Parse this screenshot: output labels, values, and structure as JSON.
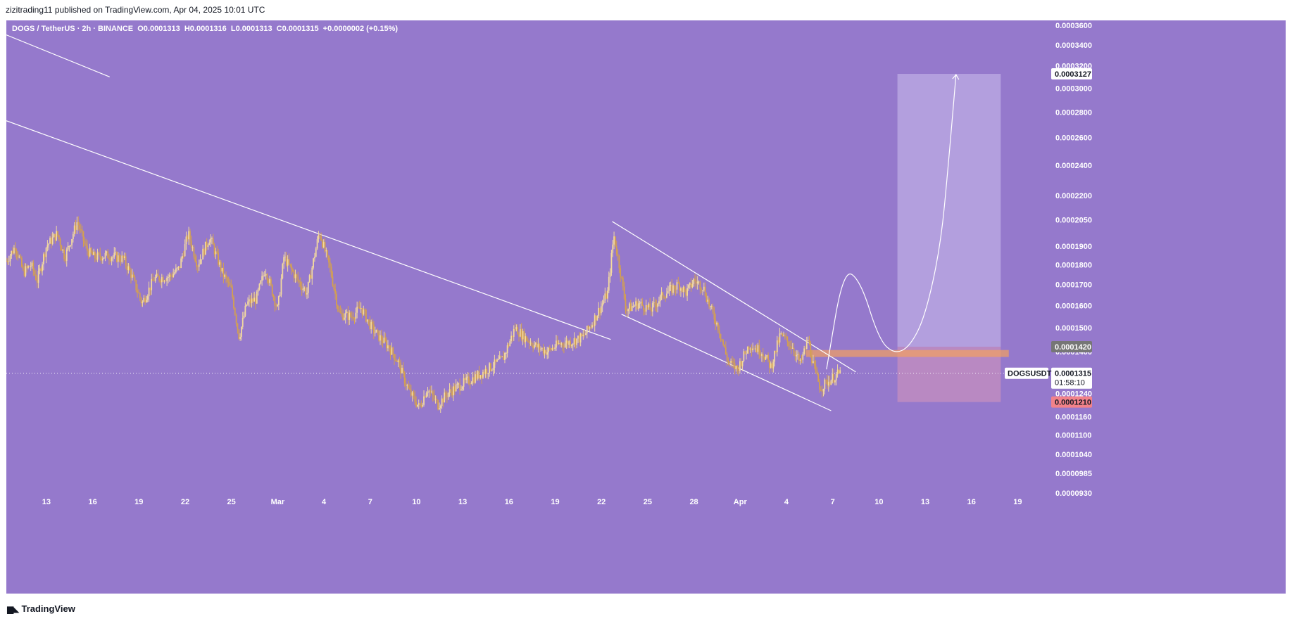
{
  "publisher": "zizitrading11 published on TradingView.com, Apr 04, 2025 10:01 UTC",
  "legend": {
    "symbol": "DOGS / TetherUS · 2h · BINANCE",
    "open": "O0.0001313",
    "high": "H0.0001316",
    "low": "L0.0001313",
    "close": "C0.0001315",
    "change": "+0.0000002 (+0.15%)"
  },
  "footer": {
    "brand": "TradingView",
    "logo_icon": "tradingview-logo-icon"
  },
  "colors": {
    "background": "#9579cc",
    "candle": "#f3d9a0",
    "candle_dark": "#d4a050",
    "line": "#ffffff",
    "target_zone": "#b9a6e0",
    "stop_zone": "#c08cc0",
    "entry_zone": "#f4a060",
    "price_box": "#ffffff",
    "level_box": "#767676",
    "stop_box": "#f2828a"
  },
  "chart_data": {
    "type": "candlestick",
    "symbol": "DOGSUSDT",
    "interval": "2h",
    "y_scale": "log",
    "ylim": [
      9.3e-05,
      0.000365
    ],
    "y_ticks": [
      "0.0003600",
      "0.0003400",
      "0.0003200",
      "0.0003000",
      "0.0002800",
      "0.0002600",
      "0.0002400",
      "0.0002200",
      "0.0002050",
      "0.0001900",
      "0.0001800",
      "0.0001700",
      "0.0001600",
      "0.0001500",
      "0.0001400",
      "0.0001320",
      "0.0001240",
      "0.0001160",
      "0.0001100",
      "0.0001040",
      "0.0000985",
      "0.0000930"
    ],
    "x_ticks": [
      "13",
      "16",
      "19",
      "22",
      "25",
      "Mar",
      "4",
      "7",
      "10",
      "13",
      "16",
      "19",
      "22",
      "25",
      "28",
      "Apr",
      "4",
      "7",
      "10",
      "13",
      "16",
      "19"
    ],
    "x_tick_days": [
      -20,
      -17,
      -14,
      -11,
      -8,
      -5,
      -2,
      1,
      4,
      7,
      10,
      13,
      16,
      19,
      22,
      25,
      28,
      31,
      34,
      37,
      40,
      43
    ],
    "x_range_days": [
      -22.6,
      44.9
    ],
    "price_trace": [
      [
        -22.6,
        0.000182
      ],
      [
        -22.0,
        0.00019
      ],
      [
        -21.5,
        0.000176
      ],
      [
        -21.0,
        0.00018
      ],
      [
        -20.6,
        0.000172
      ],
      [
        -20.0,
        0.00019
      ],
      [
        -19.3,
        0.000197
      ],
      [
        -18.8,
        0.000184
      ],
      [
        -18.0,
        0.000204
      ],
      [
        -17.4,
        0.000188
      ],
      [
        -16.9,
        0.000184
      ],
      [
        -16.0,
        0.000185
      ],
      [
        -15.0,
        0.000183
      ],
      [
        -14.5,
        0.000175
      ],
      [
        -13.8,
        0.000161
      ],
      [
        -13.0,
        0.000173
      ],
      [
        -12.0,
        0.000174
      ],
      [
        -11.4,
        0.000178
      ],
      [
        -10.8,
        0.000197
      ],
      [
        -10.2,
        0.00018
      ],
      [
        -9.4,
        0.000195
      ],
      [
        -8.6,
        0.000176
      ],
      [
        -8.0,
        0.000167
      ],
      [
        -7.5,
        0.000146
      ],
      [
        -7.0,
        0.000161
      ],
      [
        -6.4,
        0.000163
      ],
      [
        -5.8,
        0.000178
      ],
      [
        -5.0,
        0.000158
      ],
      [
        -4.6,
        0.000184
      ],
      [
        -3.7,
        0.000172
      ],
      [
        -3.1,
        0.000166
      ],
      [
        -2.3,
        0.000198
      ],
      [
        -1.6,
        0.000178
      ],
      [
        -1.0,
        0.000156
      ],
      [
        -0.2,
        0.000155
      ],
      [
        0.4,
        0.000159
      ],
      [
        1.1,
        0.00015
      ],
      [
        1.6,
        0.000146
      ],
      [
        2.2,
        0.000142
      ],
      [
        2.8,
        0.000136
      ],
      [
        3.5,
        0.000125
      ],
      [
        4.2,
        0.000119
      ],
      [
        4.7,
        0.000126
      ],
      [
        5.4,
        0.00012
      ],
      [
        6.0,
        0.000124
      ],
      [
        6.8,
        0.000127
      ],
      [
        7.8,
        0.00013
      ],
      [
        8.6,
        0.000133
      ],
      [
        9.6,
        0.000137
      ],
      [
        10.4,
        0.00015
      ],
      [
        11.0,
        0.000146
      ],
      [
        11.8,
        0.000142
      ],
      [
        12.5,
        0.00014
      ],
      [
        13.2,
        0.000143
      ],
      [
        14.0,
        0.000144
      ],
      [
        14.8,
        0.000146
      ],
      [
        15.4,
        0.000152
      ],
      [
        16.0,
        0.00016
      ],
      [
        16.4,
        0.000166
      ],
      [
        16.8,
        0.000196
      ],
      [
        17.2,
        0.000178
      ],
      [
        17.6,
        0.000158
      ],
      [
        18.4,
        0.000161
      ],
      [
        19.2,
        0.000158
      ],
      [
        20.0,
        0.000165
      ],
      [
        21.0,
        0.00017
      ],
      [
        21.5,
        0.000166
      ],
      [
        22.0,
        0.000172
      ],
      [
        22.6,
        0.000169
      ],
      [
        23.0,
        0.00016
      ],
      [
        23.6,
        0.00015
      ],
      [
        24.2,
        0.000136
      ],
      [
        24.8,
        0.000133
      ],
      [
        25.6,
        0.000143
      ],
      [
        26.4,
        0.00014
      ],
      [
        27.0,
        0.000134
      ],
      [
        27.6,
        0.000147
      ],
      [
        28.4,
        0.000142
      ],
      [
        28.9,
        0.000135
      ],
      [
        29.4,
        0.000145
      ],
      [
        29.8,
        0.000133
      ],
      [
        30.2,
        0.000126
      ],
      [
        30.6,
        0.000128
      ],
      [
        31.3,
        0.000131
      ],
      [
        31.5,
        0.0001315
      ]
    ],
    "trendlines": [
      {
        "from": [
          -22.6,
          0.00035
        ],
        "to": [
          -15.9,
          0.00031
        ]
      },
      {
        "from": [
          -22.6,
          0.000273
        ],
        "to": [
          16.6,
          0.000145
        ]
      },
      {
        "from": [
          16.7,
          0.000204
        ],
        "to": [
          32.5,
          0.000132
        ]
      },
      {
        "from": [
          17.3,
          0.000156
        ],
        "to": [
          30.9,
          0.000118
        ]
      }
    ],
    "entry_zone": {
      "from_day": 29.3,
      "to_day": 42.4,
      "low": 0.000138,
      "high": 0.0001405
    },
    "position": {
      "from_day": 35.2,
      "to_day": 41.9,
      "entry": 0.000142,
      "target": 0.0003127,
      "stop": 0.000121
    },
    "projection": [
      [
        30.6,
        0.000133
      ],
      [
        31.7,
        0.000178
      ],
      [
        32.8,
        0.000172
      ],
      [
        34.0,
        0.000145
      ],
      [
        35.0,
        0.000139
      ],
      [
        36.0,
        0.000142
      ],
      [
        37.0,
        0.000155
      ],
      [
        38.0,
        0.00019
      ],
      [
        38.5,
        0.00024
      ],
      [
        39.0,
        0.000312
      ]
    ],
    "last_price": "0.0001315",
    "symbol_label": "DOGSUSDT",
    "countdown": "01:58:10",
    "level_labels": {
      "target": "0.0003127",
      "entry": "0.0001420",
      "stop": "0.0001210"
    }
  }
}
